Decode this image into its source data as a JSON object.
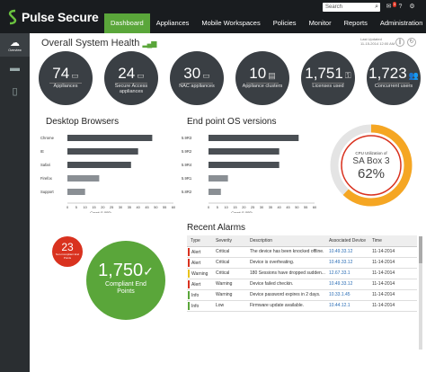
{
  "app": {
    "brand": "Pulse Secure"
  },
  "search": {
    "placeholder": "Search"
  },
  "nav": {
    "tabs": [
      {
        "label": "Dashboard",
        "active": true
      },
      {
        "label": "Appliances"
      },
      {
        "label": "Mobile Workspaces"
      },
      {
        "label": "Policies"
      },
      {
        "label": "Monitor"
      },
      {
        "label": "Reports"
      },
      {
        "label": "Administration"
      }
    ]
  },
  "topbar": {
    "notification_count": "3"
  },
  "sidebar": {
    "items": [
      {
        "label": "Overview",
        "icon": "cloud-icon",
        "active": true
      },
      {
        "label": "",
        "icon": "server-icon"
      },
      {
        "label": "",
        "icon": "devices-icon"
      }
    ]
  },
  "header": {
    "title": "Overall System Health",
    "updated_label": "Last Updated",
    "updated_value": "11-15-2014 12:00 AM"
  },
  "stats": [
    {
      "value": "74",
      "label": "Appliances",
      "icon": "appliance-icon"
    },
    {
      "value": "24",
      "label": "Secure Access appliances",
      "icon": "appliance-icon"
    },
    {
      "value": "30",
      "label": "NAC appliances",
      "icon": "appliance-icon"
    },
    {
      "value": "10",
      "label": "Appliance clusters",
      "icon": "cluster-icon"
    },
    {
      "value": "1,751",
      "label": "Licenses used",
      "icon": "license-icon"
    },
    {
      "value": "1,723",
      "label": "Concurrent users",
      "icon": "users-icon"
    }
  ],
  "browsers": {
    "title": "Desktop Browsers",
    "xlabel": "Count (1,000)",
    "chart_data": {
      "type": "bar",
      "categories": [
        "Chrome",
        "IE",
        "Safari",
        "Firefox",
        "Support"
      ],
      "values": [
        48,
        40,
        36,
        18,
        10
      ],
      "xlim": [
        0,
        60
      ],
      "ticks": [
        "0",
        "5",
        "10",
        "15",
        "20",
        "25",
        "30",
        "35",
        "40",
        "45",
        "50",
        "55",
        "60"
      ]
    }
  },
  "os": {
    "title": "End point OS versions",
    "xlabel": "Count (1,000)",
    "chart_data": {
      "type": "bar",
      "categories": [
        "5.9R3",
        "5.9R2",
        "5.9R4",
        "5.9R1",
        "5.8R2"
      ],
      "values": [
        51,
        40,
        40,
        11,
        7
      ],
      "xlim": [
        0,
        60
      ],
      "ticks": [
        "0",
        "5",
        "10",
        "15",
        "20",
        "25",
        "30",
        "35",
        "40",
        "45",
        "50",
        "55",
        "60"
      ]
    }
  },
  "gauge": {
    "label": "CPU Utilization of",
    "name": "SA Box 3",
    "value": "62%",
    "fraction": 0.62,
    "colors": {
      "fill": "#f5a623",
      "track": "#e4e4e4",
      "warn": "#d9321f"
    }
  },
  "compliance": {
    "noncompliant_value": "23",
    "noncompliant_label": "Non-Compliant End Points",
    "compliant_value": "1,750",
    "compliant_label": "Compliant End Points"
  },
  "alarms": {
    "title": "Recent Alarms",
    "columns": [
      "Type",
      "Severity",
      "Description",
      "Associated Device",
      "Time"
    ],
    "rows": [
      {
        "type": "Alert",
        "severity": "Critical",
        "description": "The device has been knocked offline.",
        "device": "10.49.33.12",
        "time": "11-14-2014",
        "color": "#d9321f"
      },
      {
        "type": "Alert",
        "severity": "Critical",
        "description": "Device is overheating.",
        "device": "10.49.33.12",
        "time": "11-14-2014",
        "color": "#d9321f"
      },
      {
        "type": "Warning",
        "severity": "Critical",
        "description": "180 Sessions have dropped sudden...",
        "device": "12.67.33.1",
        "time": "11-14-2014",
        "color": "#e8c21c"
      },
      {
        "type": "Alert",
        "severity": "Warning",
        "description": "Device failed checkin.",
        "device": "10.49.33.12",
        "time": "11-14-2014",
        "color": "#d9321f"
      },
      {
        "type": "Info",
        "severity": "Warning",
        "description": "Device password expires in 2 days.",
        "device": "10.33.1.45",
        "time": "11-14-2014",
        "color": "#5aa63a"
      },
      {
        "type": "Info",
        "severity": "Low",
        "description": "Firmware update available.",
        "device": "10.44.12.1",
        "time": "11-14-2014",
        "color": "#5aa63a"
      }
    ]
  },
  "colors": {
    "accent": "#5aa63a",
    "topbar": "#191c1f",
    "stat_bg": "#3a3f44",
    "alert": "#d9321f"
  }
}
